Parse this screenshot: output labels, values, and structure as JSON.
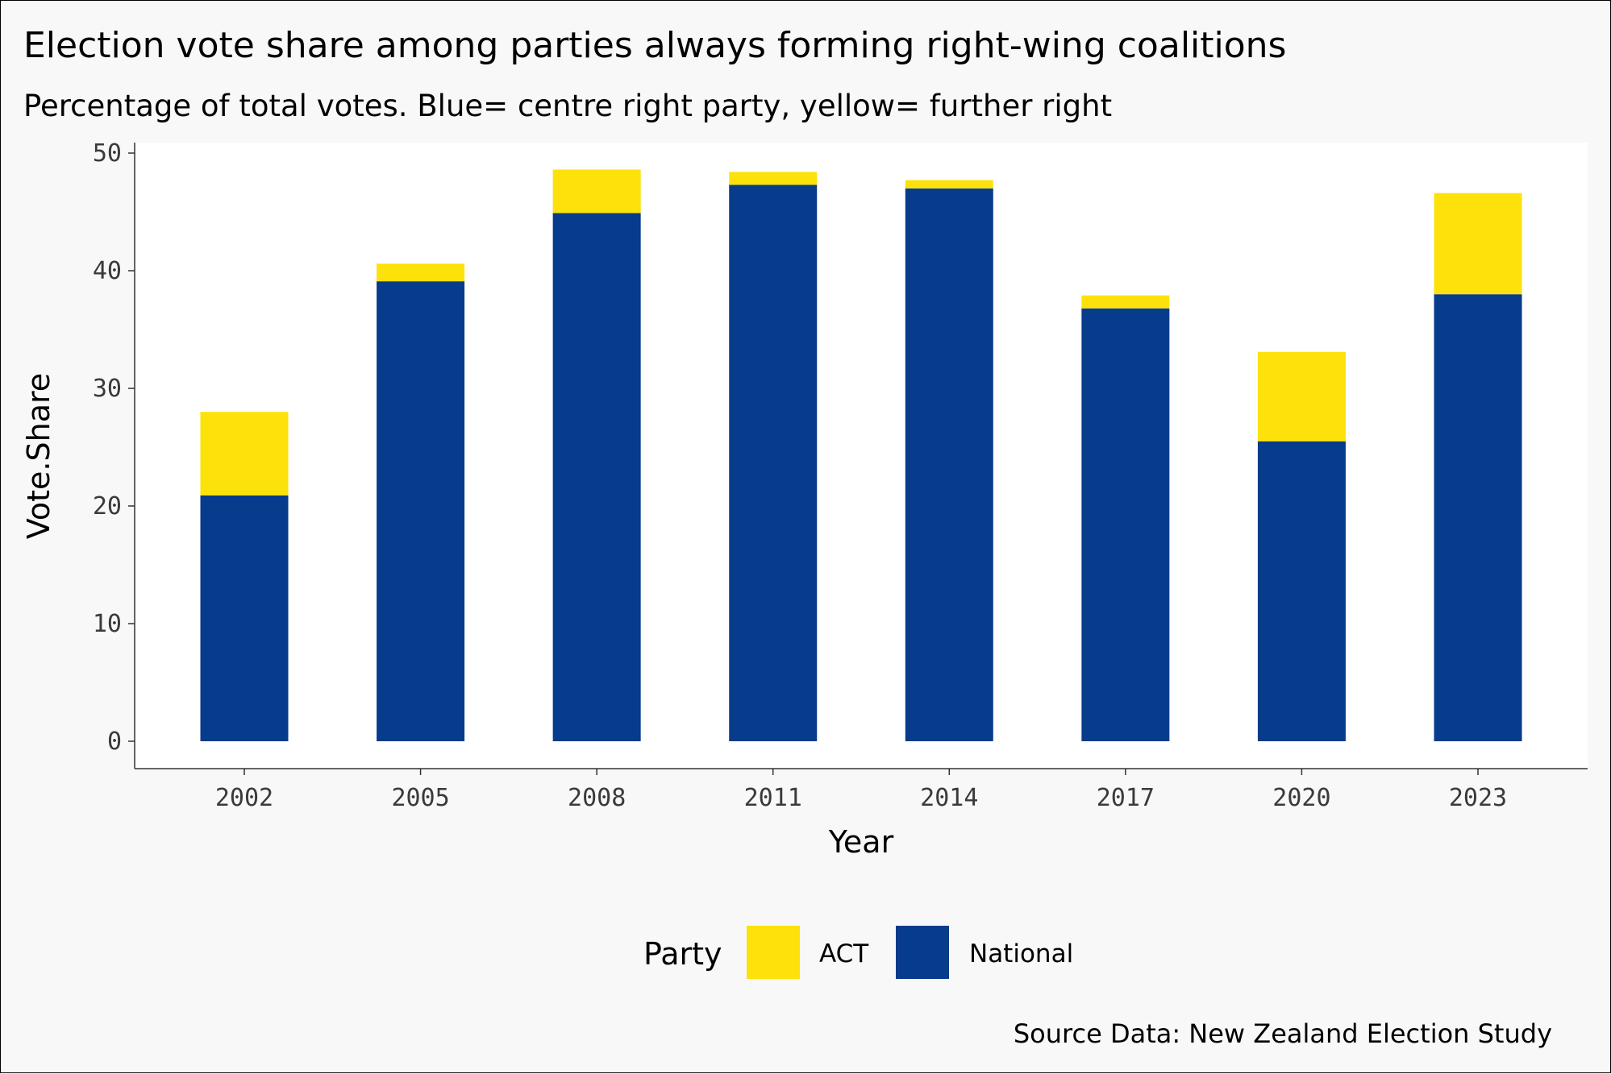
{
  "chart_data": {
    "type": "bar",
    "stacked": true,
    "title": "Election vote share among parties always forming right-wing coalitions",
    "subtitle": "Percentage of total votes. Blue= centre right party, yellow= further right",
    "xlabel": "Year",
    "ylabel": "Vote.Share",
    "caption": "Source Data: New Zealand Election Study",
    "categories": [
      "2002",
      "2005",
      "2008",
      "2011",
      "2014",
      "2017",
      "2020",
      "2023"
    ],
    "ylim": [
      0,
      50
    ],
    "yticks": [
      0,
      10,
      20,
      30,
      40,
      50
    ],
    "series": [
      {
        "name": "National",
        "color": "#073b8b",
        "values": [
          20.9,
          39.1,
          44.9,
          47.3,
          47.0,
          36.8,
          25.5,
          38.0
        ]
      },
      {
        "name": "ACT",
        "color": "#fce20a",
        "values": [
          7.1,
          1.5,
          3.7,
          1.1,
          0.7,
          1.1,
          7.6,
          8.6
        ]
      }
    ],
    "legend": {
      "title": "Party",
      "position": "bottom",
      "items": [
        {
          "name": "ACT",
          "color": "#fce20a"
        },
        {
          "name": "National",
          "color": "#073b8b"
        }
      ]
    },
    "grid": false
  }
}
